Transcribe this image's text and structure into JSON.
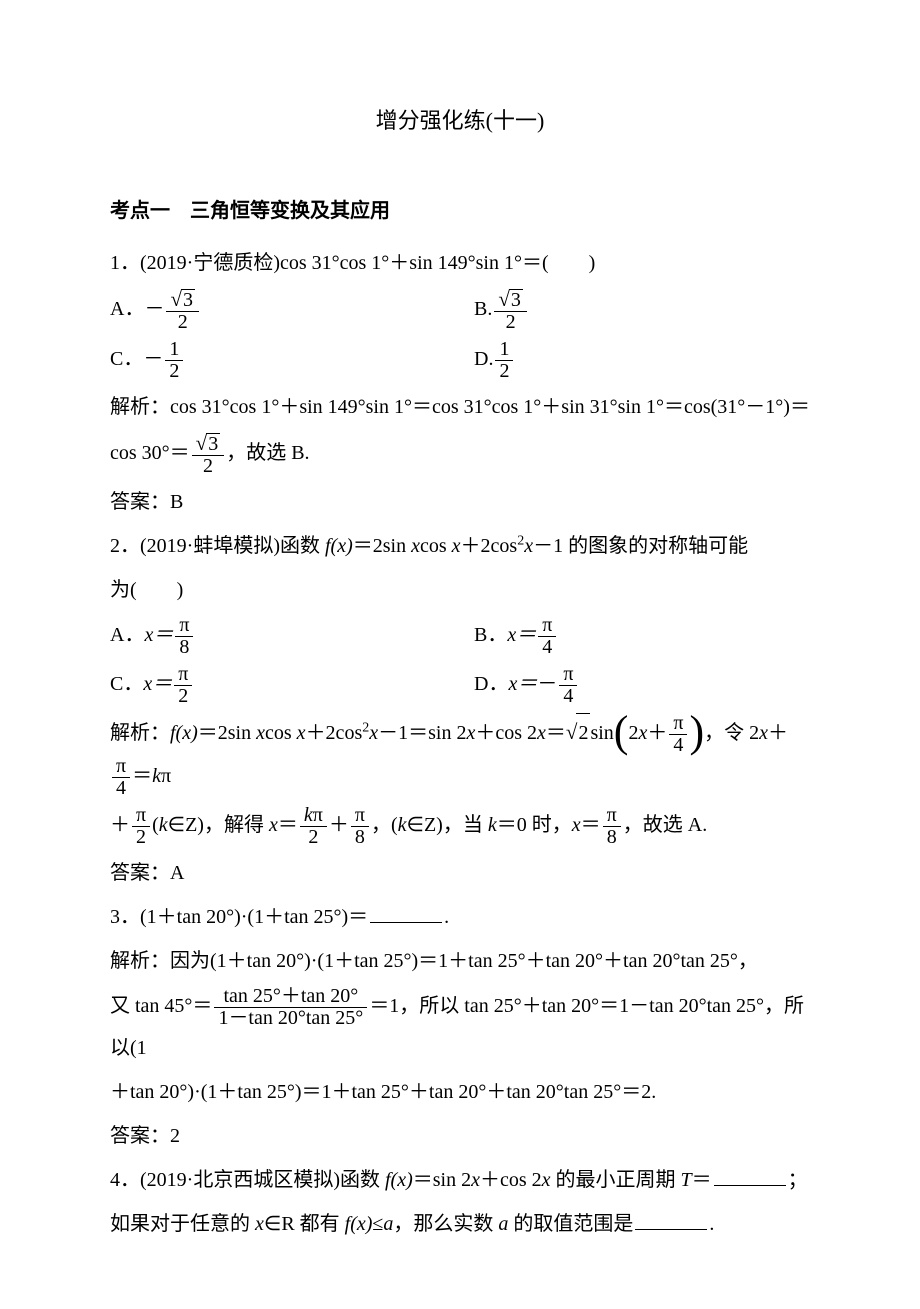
{
  "page": {
    "title": "增分强化练(十一)",
    "heading": "考点一　三角恒等变换及其应用"
  },
  "q1": {
    "stem_prefix": "1．(2019·宁德质检)cos 31°cos 1°＋sin 149°sin 1°＝(　　)",
    "optA_label": "A．",
    "optA_prefix": "－",
    "optB_label": "B.",
    "optC_label": "C．",
    "optC_prefix": "－",
    "optD_label": "D.",
    "frac_sqrt3": "3",
    "frac_1": "1",
    "frac_2": "2",
    "sol_prefix": "解析：cos 31°cos 1°＋sin 149°sin 1°＝cos 31°cos 1°＋sin 31°sin 1°＝cos(31°－1°)＝",
    "sol_line2_prefix": "cos 30°＝",
    "sol_line2_suffix": "，故选 B.",
    "answer": "答案：B"
  },
  "q2": {
    "stem_line1_a": "2．(2019·蚌埠模拟)函数 ",
    "stem_line1_b": "＝2sin ",
    "stem_line1_c": "cos ",
    "stem_line1_d": "＋2cos",
    "stem_line1_e": "－1 的图象的对称轴可能",
    "fx": "f(x)",
    "x": "x",
    "sup2": "2",
    "stem_line2": "为(　　)",
    "optA_label": "A．",
    "optB_label": "B．",
    "optC_label": "C．",
    "optD_label": "D．",
    "x_eq": "x＝",
    "pi": "π",
    "d8": "8",
    "d4": "4",
    "d2": "2",
    "neg": "－",
    "sol_prefix_a": "解析：",
    "sol_prefix_b": "＝2sin ",
    "sol_prefix_c": "cos ",
    "sol_prefix_d": "＋2cos",
    "sol_prefix_e": "－1＝sin 2",
    "sol_prefix_f": "＋cos 2",
    "sol_prefix_g": "＝",
    "sqrt2": "2",
    "sol_prefix_h": "sin",
    "sol_prefix_i": "，令 2",
    "sol_prefix_j": "＋",
    "sol_prefix_k": "＝",
    "k": "k",
    "sol_line2_a": "＋",
    "sol_line2_b": "(",
    "sol_line2_c": "∈Z)，解得 ",
    "sol_line2_d": "＝",
    "sol_line2_e": "＋",
    "sol_line2_f": "，(",
    "sol_line2_g": "∈Z)，当 ",
    "sol_line2_h": "＝0 时，",
    "sol_line2_i": "＝",
    "sol_line2_j": "，故选 A.",
    "answer": "答案：A"
  },
  "q3": {
    "stem_a": "3．(1＋tan 20°)·(1＋tan 25°)＝",
    "stem_b": ".",
    "sol1": "解析：因为(1＋tan 20°)·(1＋tan 25°)＝1＋tan 25°＋tan 20°＋tan 20°tan 25°，",
    "sol2a": "又 tan 45°＝",
    "num": "tan 25°＋tan 20°",
    "den": "1－tan 20°tan 25°",
    "sol2b": "＝1，所以 tan 25°＋tan 20°＝1－tan 20°tan 25°，所以(1",
    "sol3": "＋tan 20°)·(1＋tan 25°)＝1＋tan 25°＋tan 20°＋tan 20°tan 25°＝2.",
    "answer": "答案：2"
  },
  "q4": {
    "stem1a": "4．(2019·北京西城区模拟)函数 ",
    "fx": "f(x)",
    "stem1b": "＝sin 2",
    "x": "x",
    "stem1c": "＋cos 2",
    "stem1d": " 的最小正周期 ",
    "T": "T",
    "stem1e": "＝",
    "stem1f": "；",
    "stem2a": "如果对于任意的 ",
    "stem2b": "∈R 都有 ",
    "stem2c": "≤",
    "a": "a",
    "stem2d": "，那么实数 ",
    "stem2e": " 的取值范围是",
    "stem2f": "."
  }
}
